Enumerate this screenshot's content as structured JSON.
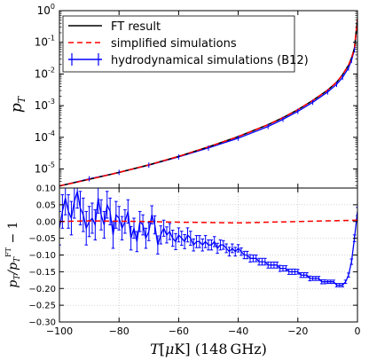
{
  "chart_data": [
    {
      "type": "line",
      "panel": "top",
      "ylabel": "p_T",
      "yscale": "log",
      "ylim": [
        2.5e-06,
        1
      ],
      "xlim": [
        -100,
        0
      ],
      "y_tick_labels": [
        {
          "v": 1,
          "base": "10",
          "exp": "0"
        },
        {
          "v": 0.1,
          "base": "10",
          "exp": "-1"
        },
        {
          "v": 0.01,
          "base": "10",
          "exp": "-2"
        },
        {
          "v": 0.001,
          "base": "10",
          "exp": "-3"
        },
        {
          "v": 0.0001,
          "base": "10",
          "exp": "-4"
        },
        {
          "v": 1e-05,
          "base": "10",
          "exp": "-5"
        }
      ],
      "legend": {
        "placement": "top-left",
        "entries": [
          {
            "label": "FT result",
            "color": "#000000",
            "style": "solid"
          },
          {
            "label": "simplified simulations",
            "color": "#ff0000",
            "style": "dashed"
          },
          {
            "label": "hydrodynamical simulations (B12)",
            "color": "#0000ff",
            "style": "errorbar"
          }
        ]
      },
      "series": [
        {
          "name": "FT result",
          "color": "#000000",
          "x": [
            -100,
            -90,
            -80,
            -70,
            -60,
            -50,
            -40,
            -30,
            -25,
            -20,
            -15,
            -10,
            -7,
            -5,
            -3,
            -2,
            -1,
            0
          ],
          "y": [
            2.9e-06,
            4.7e-06,
            7.8e-06,
            1.35e-05,
            2.5e-05,
            5e-05,
            0.000105,
            0.00025,
            0.00042,
            0.00075,
            0.00145,
            0.0031,
            0.0055,
            0.0095,
            0.019,
            0.032,
            0.065,
            0.55
          ]
        },
        {
          "name": "simplified simulations",
          "color": "#ff0000",
          "x": [
            -100,
            -90,
            -80,
            -70,
            -60,
            -50,
            -40,
            -30,
            -25,
            -20,
            -15,
            -10,
            -7,
            -5,
            -3,
            -2,
            -1,
            0
          ],
          "y": [
            2.9e-06,
            4.7e-06,
            7.8e-06,
            1.35e-05,
            2.5e-05,
            5e-05,
            0.000105,
            0.00025,
            0.00042,
            0.00075,
            0.00145,
            0.0031,
            0.0055,
            0.0095,
            0.019,
            0.032,
            0.065,
            0.55
          ]
        },
        {
          "name": "hydrodynamical simulations (B12)",
          "color": "#0000ff",
          "x": [
            -100,
            -90,
            -80,
            -70,
            -60,
            -50,
            -40,
            -30,
            -25,
            -20,
            -15,
            -10,
            -7,
            -5,
            -3,
            -2,
            -1,
            0
          ],
          "y": [
            2.9e-06,
            4.9e-06,
            7.8e-06,
            1.32e-05,
            2.4e-05,
            4.6e-05,
            9.4e-05,
            0.00022,
            0.00037,
            0.00066,
            0.00128,
            0.0027,
            0.0047,
            0.0078,
            0.0155,
            0.027,
            0.058,
            0.55
          ]
        }
      ]
    },
    {
      "type": "line",
      "panel": "bottom",
      "xlabel": "T[μK] (148 GHz)",
      "ylabel": "p_T/p_T^FT − 1",
      "xlim": [
        -100,
        0
      ],
      "ylim": [
        -0.3,
        0.1
      ],
      "grid": true,
      "x_ticks": [
        -100,
        -80,
        -60,
        -40,
        -20,
        0
      ],
      "x_tick_labels": [
        "−100",
        "−80",
        "−60",
        "−40",
        "−20",
        "0"
      ],
      "y_ticks": [
        0.1,
        0.05,
        0.0,
        -0.05,
        -0.1,
        -0.15,
        -0.2,
        -0.25,
        -0.3
      ],
      "y_tick_labels": [
        "0.10",
        "0.05",
        "0.00",
        "−0.05",
        "−0.10",
        "−0.15",
        "−0.20",
        "−0.25",
        "−0.30"
      ],
      "series": [
        {
          "name": "simplified simulations",
          "color": "#ff0000",
          "x": [
            -100,
            -90,
            -80,
            -70,
            -60,
            -50,
            -40,
            -30,
            -20,
            -10,
            -5,
            0
          ],
          "y": [
            0.0,
            0.002,
            0.001,
            0.0,
            -0.002,
            -0.003,
            -0.004,
            -0.002,
            0.0,
            0.002,
            0.003,
            0.004
          ]
        },
        {
          "name": "hydrodynamical simulations (B12)",
          "color": "#0000ff",
          "x": [
            -100,
            -99,
            -98,
            -97,
            -96,
            -95,
            -94,
            -93,
            -92,
            -91,
            -90,
            -89,
            -88,
            -87,
            -86,
            -85,
            -84,
            -83,
            -82,
            -81,
            -80,
            -79,
            -78,
            -77,
            -76,
            -75,
            -74,
            -73,
            -72,
            -71,
            -70,
            -69,
            -68,
            -67,
            -66,
            -65,
            -64,
            -63,
            -62,
            -61,
            -60,
            -59,
            -58,
            -57,
            -56,
            -55,
            -54,
            -53,
            -52,
            -51,
            -50,
            -49,
            -48,
            -47,
            -46,
            -45,
            -44,
            -43,
            -42,
            -41,
            -40,
            -39,
            -38,
            -37,
            -36,
            -35,
            -34,
            -33,
            -32,
            -31,
            -30,
            -29,
            -28,
            -27,
            -26,
            -25,
            -24,
            -23,
            -22,
            -21,
            -20,
            -19,
            -18,
            -17,
            -16,
            -15,
            -14,
            -13,
            -12,
            -11,
            -10,
            -9,
            -8,
            -7,
            -6,
            -5,
            -4,
            -3,
            -2,
            -1,
            0
          ],
          "y": [
            -0.02,
            0.03,
            0.07,
            0.03,
            0.01,
            0.06,
            0.09,
            0.04,
            0.02,
            -0.02,
            0.0,
            0.01,
            -0.01,
            0.07,
            0.02,
            -0.01,
            0.05,
            0.03,
            -0.04,
            0.02,
            0.01,
            -0.02,
            0.0,
            0.03,
            -0.05,
            -0.02,
            -0.06,
            0.0,
            -0.01,
            -0.05,
            -0.03,
            0.02,
            -0.01,
            -0.07,
            -0.04,
            -0.02,
            -0.04,
            -0.03,
            -0.05,
            -0.06,
            -0.04,
            -0.05,
            -0.06,
            -0.04,
            -0.05,
            -0.07,
            -0.06,
            -0.06,
            -0.07,
            -0.06,
            -0.07,
            -0.07,
            -0.06,
            -0.08,
            -0.07,
            -0.07,
            -0.08,
            -0.09,
            -0.08,
            -0.09,
            -0.08,
            -0.09,
            -0.1,
            -0.1,
            -0.11,
            -0.11,
            -0.11,
            -0.12,
            -0.12,
            -0.12,
            -0.13,
            -0.13,
            -0.13,
            -0.13,
            -0.14,
            -0.14,
            -0.14,
            -0.15,
            -0.15,
            -0.15,
            -0.15,
            -0.16,
            -0.16,
            -0.16,
            -0.17,
            -0.17,
            -0.17,
            -0.17,
            -0.18,
            -0.18,
            -0.18,
            -0.18,
            -0.18,
            -0.19,
            -0.19,
            -0.19,
            -0.18,
            -0.16,
            -0.12,
            -0.05,
            0.03
          ],
          "err": [
            0.05,
            0.05,
            0.05,
            0.05,
            0.05,
            0.05,
            0.05,
            0.05,
            0.05,
            0.05,
            0.045,
            0.045,
            0.045,
            0.045,
            0.045,
            0.04,
            0.04,
            0.04,
            0.04,
            0.04,
            0.035,
            0.035,
            0.035,
            0.035,
            0.035,
            0.03,
            0.03,
            0.03,
            0.03,
            0.03,
            0.027,
            0.027,
            0.027,
            0.027,
            0.027,
            0.024,
            0.024,
            0.024,
            0.024,
            0.024,
            0.021,
            0.021,
            0.021,
            0.021,
            0.021,
            0.018,
            0.018,
            0.018,
            0.018,
            0.018,
            0.015,
            0.015,
            0.015,
            0.015,
            0.015,
            0.013,
            0.013,
            0.013,
            0.013,
            0.013,
            0.011,
            0.011,
            0.011,
            0.011,
            0.011,
            0.01,
            0.01,
            0.01,
            0.01,
            0.01,
            0.009,
            0.009,
            0.009,
            0.009,
            0.009,
            0.008,
            0.008,
            0.008,
            0.008,
            0.008,
            0.007,
            0.007,
            0.007,
            0.007,
            0.007,
            0.006,
            0.006,
            0.006,
            0.006,
            0.006,
            0.005,
            0.005,
            0.005,
            0.005,
            0.005,
            0.005,
            0.005,
            0.006,
            0.008,
            0.01,
            0.012
          ]
        }
      ]
    }
  ]
}
